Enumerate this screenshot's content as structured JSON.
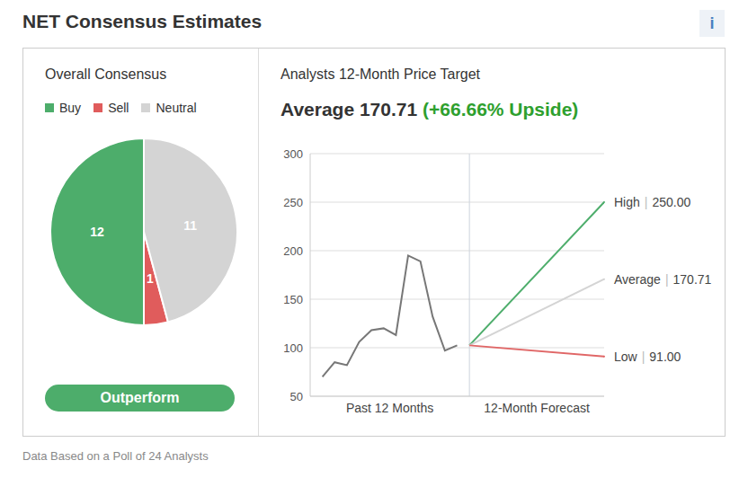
{
  "title": "NET Consensus Estimates",
  "info_icon": "i",
  "footer": "Data Based on a Poll of 24 Analysts",
  "chart_data": [
    {
      "type": "pie",
      "title": "Overall Consensus",
      "categories": [
        "Buy",
        "Sell",
        "Neutral"
      ],
      "values": [
        12,
        1,
        11
      ],
      "colors": [
        "#4dad6b",
        "#e05c5c",
        "#d4d4d4"
      ],
      "legend": "top",
      "data_labels": true,
      "rating": "Outperform"
    },
    {
      "type": "line",
      "title": "Analysts 12-Month Price Target",
      "subtitle": "Average 170.71",
      "subtitle_note": "(+66.66% Upside)",
      "xlim": [
        0,
        24
      ],
      "xticks": [
        {
          "value": 6.5,
          "label": "Past 12 Months"
        },
        {
          "value": 18.5,
          "label": "12-Month Forecast"
        }
      ],
      "ylim": [
        50,
        300
      ],
      "yticks": [
        50,
        100,
        150,
        200,
        250,
        300
      ],
      "grid": true,
      "label_separator": "|",
      "series": [
        {
          "color": "#777777",
          "x": [
            1,
            2,
            3,
            4,
            5,
            6,
            7,
            8,
            9,
            10,
            11,
            12
          ],
          "values": [
            70,
            85,
            82,
            106,
            118,
            120,
            113,
            195,
            189,
            132,
            97,
            102.43
          ]
        },
        {
          "name": "High",
          "color": "#4dad6b",
          "x": [
            13,
            24
          ],
          "values": [
            102.43,
            250
          ],
          "value_labels": [
            null,
            "250.00"
          ]
        },
        {
          "name": "Average",
          "color": "#d4d4d4",
          "x": [
            13,
            24
          ],
          "values": [
            102.43,
            170.71
          ],
          "value_labels": [
            null,
            "170.71"
          ]
        },
        {
          "name": "Low",
          "color": "#e06666",
          "x": [
            13,
            24
          ],
          "values": [
            102.43,
            91
          ],
          "value_labels": [
            null,
            "91.00"
          ]
        }
      ]
    }
  ]
}
